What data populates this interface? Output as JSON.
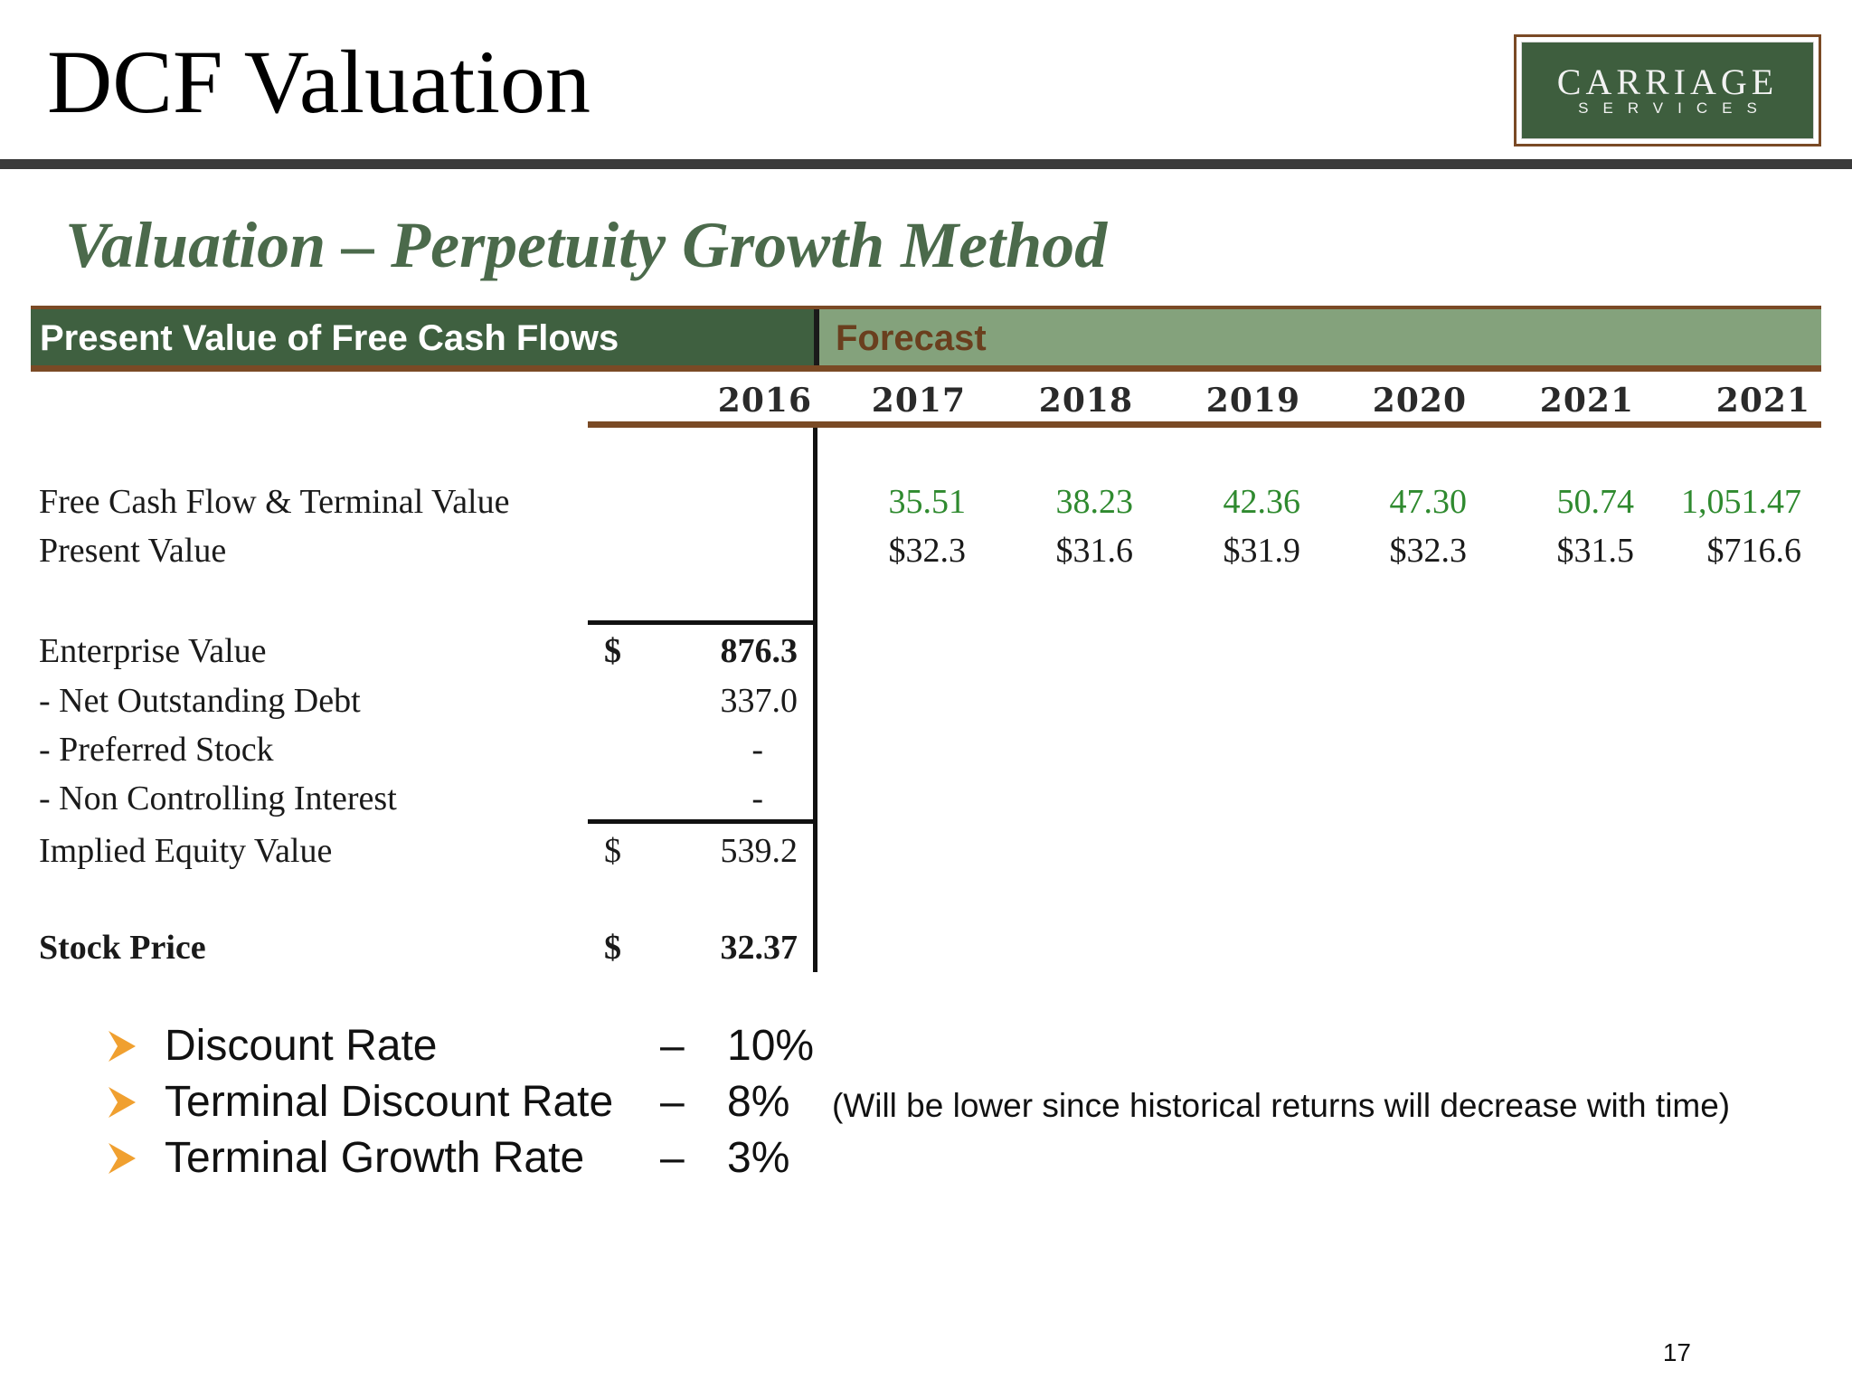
{
  "header": {
    "title": "DCF Valuation",
    "logo": {
      "main": "CARRIAGE",
      "sub": "SERVICES"
    }
  },
  "subtitle": "Valuation – Perpetuity Growth Method",
  "table": {
    "band_left_label": "Present Value of Free Cash Flows",
    "band_right_label": "Forecast",
    "years": [
      "2016",
      "2017",
      "2018",
      "2019",
      "2020",
      "2021",
      "2021"
    ],
    "rows": {
      "fcf": {
        "label": "Free Cash Flow & Terminal Value",
        "values": [
          "35.51",
          "38.23",
          "42.36",
          "47.30",
          "50.74",
          "1,051.47"
        ]
      },
      "pv": {
        "label": "Present Value",
        "values": [
          "$32.3",
          "$31.6",
          "$31.9",
          "$32.3",
          "$31.5",
          "$716.6"
        ]
      }
    },
    "summary": {
      "enterprise_value": {
        "label": "Enterprise Value",
        "currency": "$",
        "value": "876.3"
      },
      "net_debt": {
        "label": "- Net Outstanding Debt",
        "value": "337.0"
      },
      "preferred_stock": {
        "label": "- Preferred Stock",
        "value": "-"
      },
      "nci": {
        "label": "- Non Controlling Interest",
        "value": "-"
      },
      "implied_equity": {
        "label": "Implied Equity Value",
        "currency": "$",
        "value": "539.2"
      },
      "stock_price": {
        "label": "Stock Price",
        "currency": "$",
        "value": "32.37"
      }
    }
  },
  "assumptions": [
    {
      "label": "Discount Rate",
      "sep": "–",
      "value": "10%"
    },
    {
      "label": "Terminal Discount Rate",
      "sep": "–",
      "value": "8%"
    },
    {
      "label": "Terminal Growth Rate",
      "sep": "–",
      "value": "3%"
    }
  ],
  "assumption_note": "(Will be lower since historical returns will decrease with time)",
  "colors": {
    "band_dark_green": "#3f6040",
    "band_light_green": "#84a27c",
    "accent_brown": "#7a4a25",
    "value_green": "#2f8a2f",
    "bullet_orange": "#f0a030"
  },
  "page_number": "17"
}
